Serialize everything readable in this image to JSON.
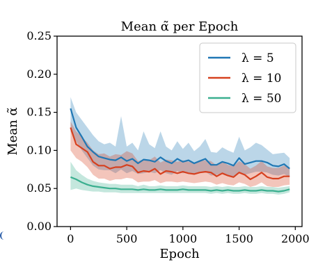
{
  "chart_data": {
    "type": "line",
    "title": "Mean α̃ per Epoch",
    "xlabel": "Epoch",
    "ylabel": "Mean α̃",
    "xlim": [
      -120,
      2060
    ],
    "ylim": [
      0,
      0.25
    ],
    "xticks": [
      0,
      500,
      1000,
      1500,
      2000
    ],
    "yticks": [
      0.0,
      0.05,
      0.1,
      0.15,
      0.2,
      0.25
    ],
    "grid": false,
    "legend_position": "top-right",
    "series": [
      {
        "name": "λ = 5",
        "color": "#1f77b4",
        "x": [
          0,
          50,
          100,
          150,
          200,
          250,
          300,
          350,
          400,
          450,
          500,
          550,
          600,
          650,
          700,
          750,
          800,
          850,
          900,
          950,
          1000,
          1050,
          1100,
          1150,
          1200,
          1250,
          1300,
          1350,
          1400,
          1450,
          1500,
          1550,
          1600,
          1650,
          1700,
          1750,
          1800,
          1850,
          1900,
          1950
        ],
        "mean": [
          0.155,
          0.13,
          0.118,
          0.105,
          0.098,
          0.092,
          0.09,
          0.088,
          0.087,
          0.091,
          0.086,
          0.089,
          0.083,
          0.088,
          0.087,
          0.085,
          0.091,
          0.086,
          0.083,
          0.089,
          0.085,
          0.087,
          0.083,
          0.086,
          0.089,
          0.081,
          0.081,
          0.085,
          0.083,
          0.08,
          0.09,
          0.082,
          0.084,
          0.086,
          0.086,
          0.084,
          0.08,
          0.079,
          0.082,
          0.076
        ],
        "lower": [
          0.125,
          0.112,
          0.1,
          0.09,
          0.08,
          0.075,
          0.074,
          0.074,
          0.07,
          0.075,
          0.07,
          0.073,
          0.069,
          0.07,
          0.072,
          0.07,
          0.074,
          0.07,
          0.068,
          0.073,
          0.07,
          0.071,
          0.068,
          0.072,
          0.072,
          0.067,
          0.068,
          0.07,
          0.067,
          0.066,
          0.071,
          0.068,
          0.07,
          0.072,
          0.072,
          0.071,
          0.068,
          0.067,
          0.069,
          0.065
        ],
        "upper": [
          0.17,
          0.15,
          0.14,
          0.13,
          0.12,
          0.112,
          0.108,
          0.11,
          0.105,
          0.145,
          0.105,
          0.11,
          0.1,
          0.125,
          0.108,
          0.103,
          0.125,
          0.105,
          0.1,
          0.112,
          0.102,
          0.11,
          0.099,
          0.105,
          0.115,
          0.098,
          0.097,
          0.104,
          0.1,
          0.097,
          0.118,
          0.1,
          0.104,
          0.11,
          0.107,
          0.101,
          0.095,
          0.096,
          0.097,
          0.09
        ]
      },
      {
        "name": "λ = 10",
        "color": "#d6401f",
        "x": [
          0,
          50,
          100,
          150,
          200,
          250,
          300,
          350,
          400,
          450,
          500,
          550,
          600,
          650,
          700,
          750,
          800,
          850,
          900,
          950,
          1000,
          1050,
          1100,
          1150,
          1200,
          1250,
          1300,
          1350,
          1400,
          1450,
          1500,
          1550,
          1600,
          1650,
          1700,
          1750,
          1800,
          1850,
          1900,
          1950
        ],
        "mean": [
          0.13,
          0.108,
          0.103,
          0.098,
          0.085,
          0.08,
          0.08,
          0.076,
          0.078,
          0.078,
          0.081,
          0.079,
          0.071,
          0.073,
          0.072,
          0.076,
          0.069,
          0.073,
          0.072,
          0.07,
          0.072,
          0.07,
          0.069,
          0.071,
          0.072,
          0.071,
          0.066,
          0.07,
          0.067,
          0.065,
          0.071,
          0.068,
          0.062,
          0.066,
          0.071,
          0.065,
          0.063,
          0.063,
          0.066,
          0.066
        ],
        "lower": [
          0.1,
          0.09,
          0.085,
          0.078,
          0.068,
          0.063,
          0.063,
          0.06,
          0.062,
          0.062,
          0.064,
          0.063,
          0.058,
          0.059,
          0.059,
          0.061,
          0.057,
          0.059,
          0.059,
          0.058,
          0.059,
          0.058,
          0.057,
          0.058,
          0.059,
          0.058,
          0.055,
          0.057,
          0.055,
          0.054,
          0.058,
          0.056,
          0.052,
          0.054,
          0.058,
          0.053,
          0.052,
          0.052,
          0.054,
          0.055
        ],
        "upper": [
          0.138,
          0.125,
          0.118,
          0.11,
          0.1,
          0.095,
          0.096,
          0.092,
          0.095,
          0.094,
          0.099,
          0.096,
          0.086,
          0.088,
          0.087,
          0.092,
          0.084,
          0.088,
          0.087,
          0.085,
          0.087,
          0.085,
          0.084,
          0.086,
          0.087,
          0.086,
          0.08,
          0.085,
          0.081,
          0.079,
          0.086,
          0.082,
          0.076,
          0.08,
          0.086,
          0.079,
          0.077,
          0.077,
          0.08,
          0.078
        ]
      },
      {
        "name": "λ = 50",
        "color": "#3aaf8f",
        "x": [
          0,
          50,
          100,
          150,
          200,
          250,
          300,
          350,
          400,
          450,
          500,
          550,
          600,
          650,
          700,
          750,
          800,
          850,
          900,
          950,
          1000,
          1050,
          1100,
          1150,
          1200,
          1250,
          1300,
          1350,
          1400,
          1450,
          1500,
          1550,
          1600,
          1650,
          1700,
          1750,
          1800,
          1850,
          1900,
          1950
        ],
        "mean": [
          0.065,
          0.062,
          0.058,
          0.055,
          0.053,
          0.052,
          0.051,
          0.05,
          0.05,
          0.049,
          0.049,
          0.049,
          0.048,
          0.049,
          0.048,
          0.048,
          0.049,
          0.048,
          0.048,
          0.048,
          0.049,
          0.048,
          0.048,
          0.048,
          0.048,
          0.047,
          0.048,
          0.047,
          0.048,
          0.047,
          0.047,
          0.048,
          0.047,
          0.047,
          0.048,
          0.047,
          0.047,
          0.046,
          0.047,
          0.049
        ],
        "lower": [
          0.048,
          0.05,
          0.048,
          0.047,
          0.046,
          0.046,
          0.045,
          0.045,
          0.045,
          0.044,
          0.044,
          0.044,
          0.044,
          0.044,
          0.044,
          0.044,
          0.044,
          0.044,
          0.044,
          0.044,
          0.044,
          0.044,
          0.044,
          0.044,
          0.044,
          0.043,
          0.044,
          0.043,
          0.044,
          0.043,
          0.043,
          0.044,
          0.043,
          0.043,
          0.044,
          0.043,
          0.043,
          0.042,
          0.043,
          0.045
        ],
        "upper": [
          0.085,
          0.074,
          0.068,
          0.063,
          0.06,
          0.058,
          0.057,
          0.056,
          0.056,
          0.055,
          0.055,
          0.055,
          0.053,
          0.055,
          0.053,
          0.053,
          0.054,
          0.053,
          0.053,
          0.053,
          0.054,
          0.053,
          0.053,
          0.053,
          0.053,
          0.052,
          0.053,
          0.052,
          0.053,
          0.052,
          0.052,
          0.053,
          0.052,
          0.052,
          0.053,
          0.052,
          0.052,
          0.051,
          0.052,
          0.053
        ]
      }
    ]
  }
}
